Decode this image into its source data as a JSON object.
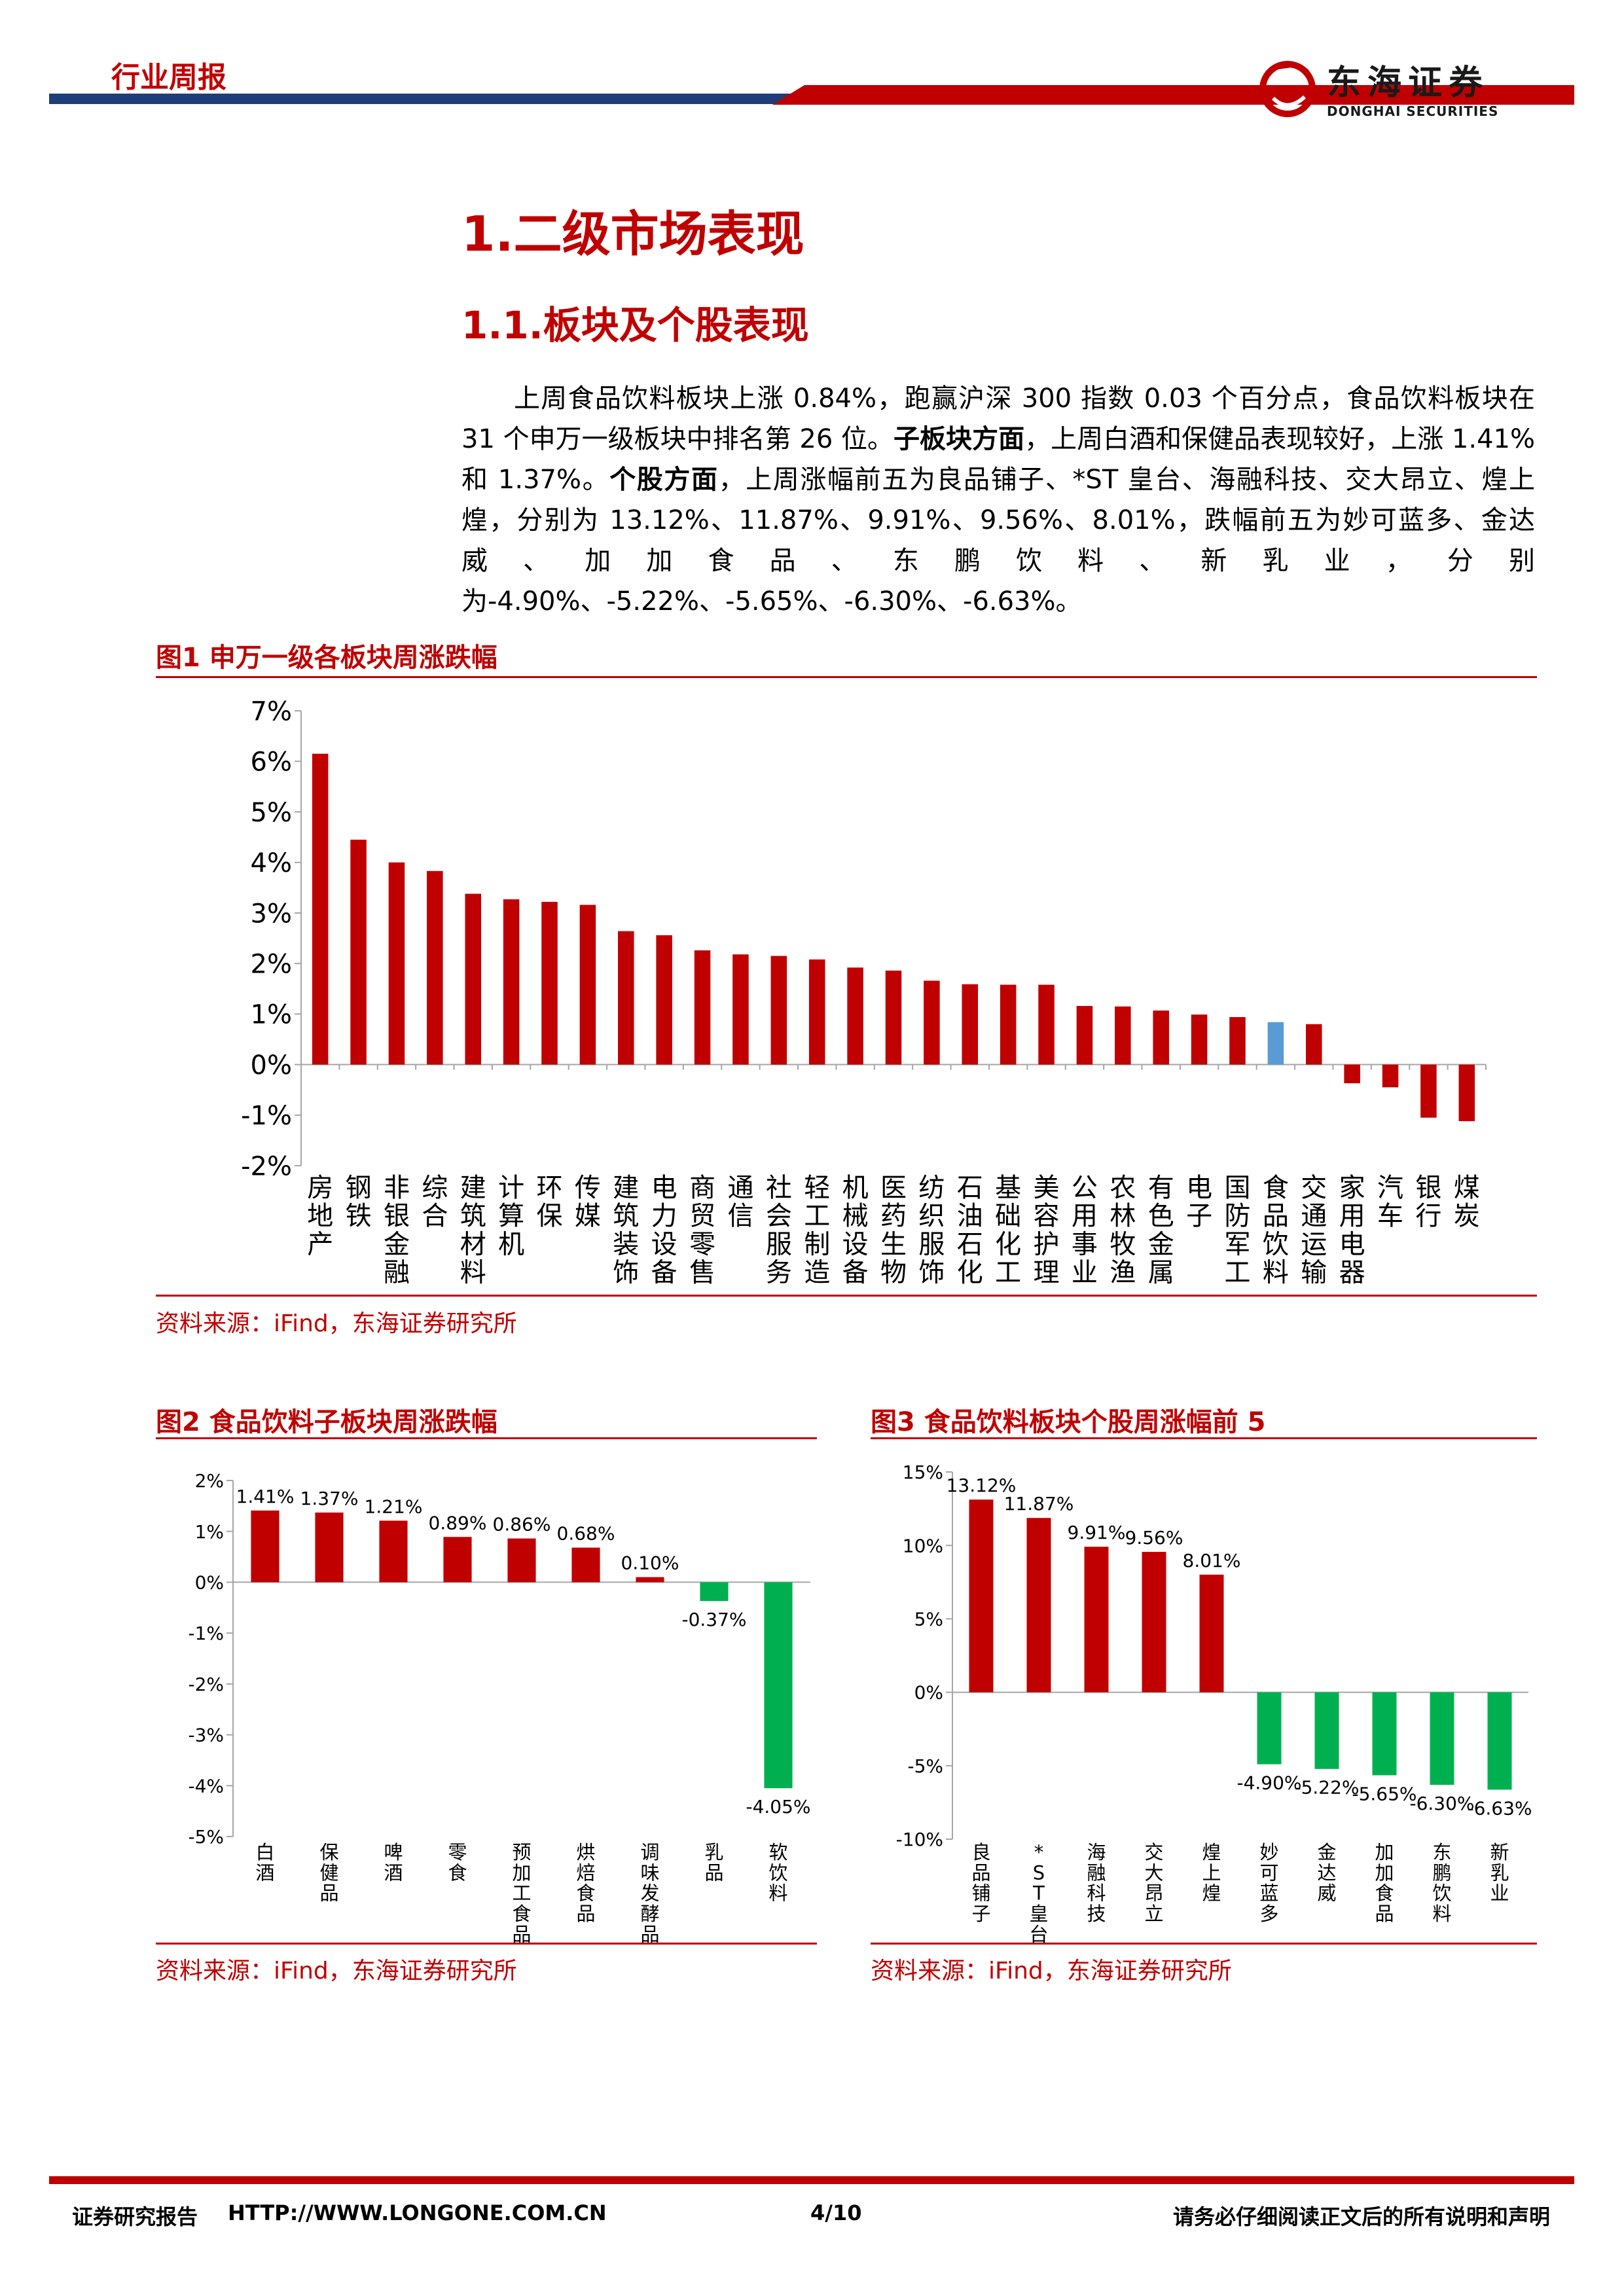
{
  "header": {
    "title": "行业周报",
    "logo_cn": "东海证券",
    "logo_en": "DONGHAI SECURITIES"
  },
  "section": {
    "h1": "1.二级市场表现",
    "h2": "1.1.板块及个股表现"
  },
  "paragraph": {
    "p1": "上周食品饮料板块上涨 0.84%，跑赢沪深 300 指数 0.03 个百分点，食品饮料板块在 31 个申万一级板块中排名第 26 位。",
    "b1": "子板块方面",
    "p2": "，上周白酒和保健品表现较好，上涨 1.41%和 1.37%。",
    "b2": "个股方面",
    "p3": "，上周涨幅前五为良品铺子、*ST 皇台、海融科技、交大昂立、煌上煌，分别为 13.12%、11.87%、9.91%、9.56%、8.01%，跌幅前五为妙可蓝多、金达威、加加食品、东鹏饮料、新乳业，分别为-4.90%、-5.22%、-5.65%、-6.30%、-6.63%。"
  },
  "figures": {
    "fig1_title": "图1  申万一级各板块周涨跌幅",
    "fig2_title": "图2  食品饮料子板块周涨跌幅",
    "fig3_title": "图3  食品饮料板块个股周涨幅前 5",
    "source": "资料来源：iFind，东海证券研究所"
  },
  "colors": {
    "red": "#c00000",
    "blue": "#5b9bd5",
    "green": "#00b050",
    "brand_blue": "#1f3d7a"
  },
  "chart_data": [
    {
      "type": "bar",
      "title": "",
      "categories": [
        "房地产",
        "钢铁",
        "非银金融",
        "综合",
        "建筑材料",
        "计算机",
        "环保",
        "传媒",
        "建筑装饰",
        "电力设备",
        "商贸零售",
        "通信",
        "社会服务",
        "轻工制造",
        "机械设备",
        "医药生物",
        "纺织服饰",
        "石油石化",
        "基础化工",
        "美容护理",
        "公用事业",
        "农林牧渔",
        "有色金属",
        "电子",
        "国防军工",
        "食品饮料",
        "交通运输",
        "家用电器",
        "汽车",
        "银行",
        "煤炭"
      ],
      "values": [
        6.15,
        4.45,
        4.0,
        3.83,
        3.38,
        3.27,
        3.22,
        3.16,
        2.64,
        2.56,
        2.26,
        2.18,
        2.15,
        2.08,
        1.92,
        1.86,
        1.66,
        1.59,
        1.58,
        1.58,
        1.16,
        1.15,
        1.07,
        0.99,
        0.94,
        0.84,
        0.8,
        -0.37,
        -0.45,
        -1.05,
        -1.12
      ],
      "highlight": "食品饮料",
      "yticks": [
        "7%",
        "6%",
        "5%",
        "4%",
        "3%",
        "2%",
        "1%",
        "0%",
        "-1%",
        "-2%"
      ],
      "ylim": [
        -2,
        7
      ]
    },
    {
      "type": "bar",
      "title": "",
      "categories": [
        "白酒",
        "保健品",
        "啤酒",
        "零食",
        "预加工食品",
        "烘焙食品",
        "调味发酵品",
        "乳品",
        "软饮料"
      ],
      "values": [
        1.41,
        1.37,
        1.21,
        0.89,
        0.86,
        0.68,
        0.1,
        -0.37,
        -4.05
      ],
      "labels": [
        "1.41%",
        "1.37%",
        "1.21%",
        "0.89%",
        "0.86%",
        "0.68%",
        "0.10%",
        "-0.37%",
        "-4.05%"
      ],
      "yticks": [
        "2%",
        "1%",
        "0%",
        "-1%",
        "-2%",
        "-3%",
        "-4%",
        "-5%"
      ],
      "ylim": [
        -5,
        2
      ]
    },
    {
      "type": "bar",
      "title": "",
      "categories": [
        "良品铺子",
        "*ST皇台",
        "海融科技",
        "交大昂立",
        "煌上煌",
        "妙可蓝多",
        "金达威",
        "加加食品",
        "东鹏饮料",
        "新乳业"
      ],
      "values": [
        13.12,
        11.87,
        9.91,
        9.56,
        8.01,
        -4.9,
        -5.22,
        -5.65,
        -6.3,
        -6.63
      ],
      "labels": [
        "13.12%",
        "11.87%",
        "9.91%",
        "9.56%",
        "8.01%",
        "-4.90%",
        "-5.22%",
        "-5.65%",
        "-6.30%",
        "-6.63%"
      ],
      "yticks": [
        "15%",
        "10%",
        "5%",
        "0%",
        "-5%",
        "-10%"
      ],
      "ylim": [
        -10,
        15
      ]
    }
  ],
  "footer": {
    "left": "证券研究报告",
    "url": "HTTP://WWW.LONGONE.COM.CN",
    "page": "4/10",
    "right": "请务必仔细阅读正文后的所有说明和声明"
  }
}
